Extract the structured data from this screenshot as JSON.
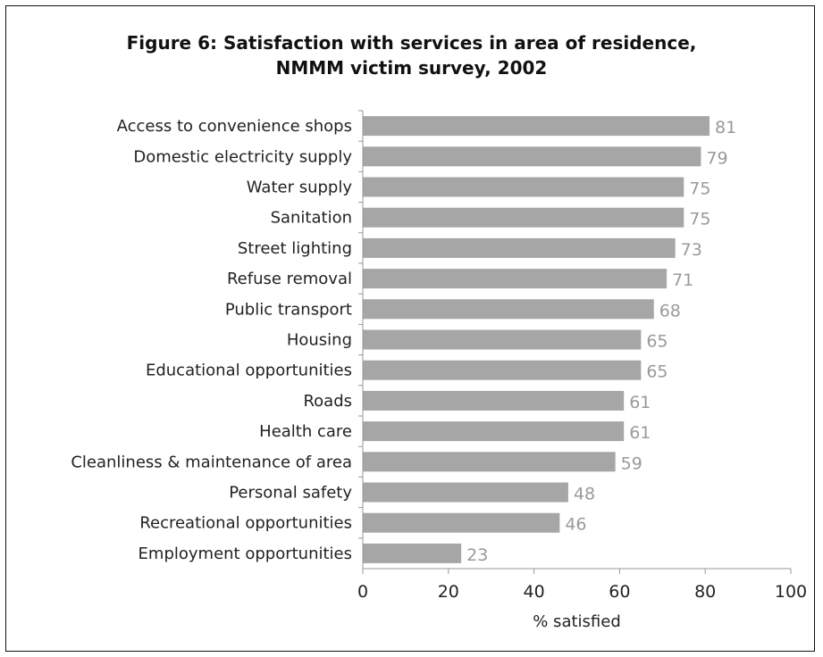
{
  "chart_data": {
    "type": "bar",
    "orientation": "horizontal",
    "title_line1": "Figure 6: Satisfaction with services in area of residence,",
    "title_line2": "NMMM victim survey, 2002",
    "xlabel": "% satisfied",
    "ylabel": "",
    "xlim": [
      0,
      100
    ],
    "xticks": [
      "0",
      "20",
      "40",
      "60",
      "80",
      "100"
    ],
    "grid": false,
    "bar_color": "#a6a6a6",
    "label_color": "#9a9a9a",
    "categories": [
      "Access to convenience shops",
      "Domestic electricity supply",
      "Water supply",
      "Sanitation",
      "Street lighting",
      "Refuse removal",
      "Public transport",
      "Housing",
      "Educational opportunities",
      "Roads",
      "Health care",
      "Cleanliness & maintenance of area",
      "Personal safety",
      "Recreational opportunities",
      "Employment opportunities"
    ],
    "values": [
      81,
      79,
      75,
      75,
      73,
      71,
      68,
      65,
      65,
      61,
      61,
      59,
      48,
      46,
      23
    ]
  }
}
